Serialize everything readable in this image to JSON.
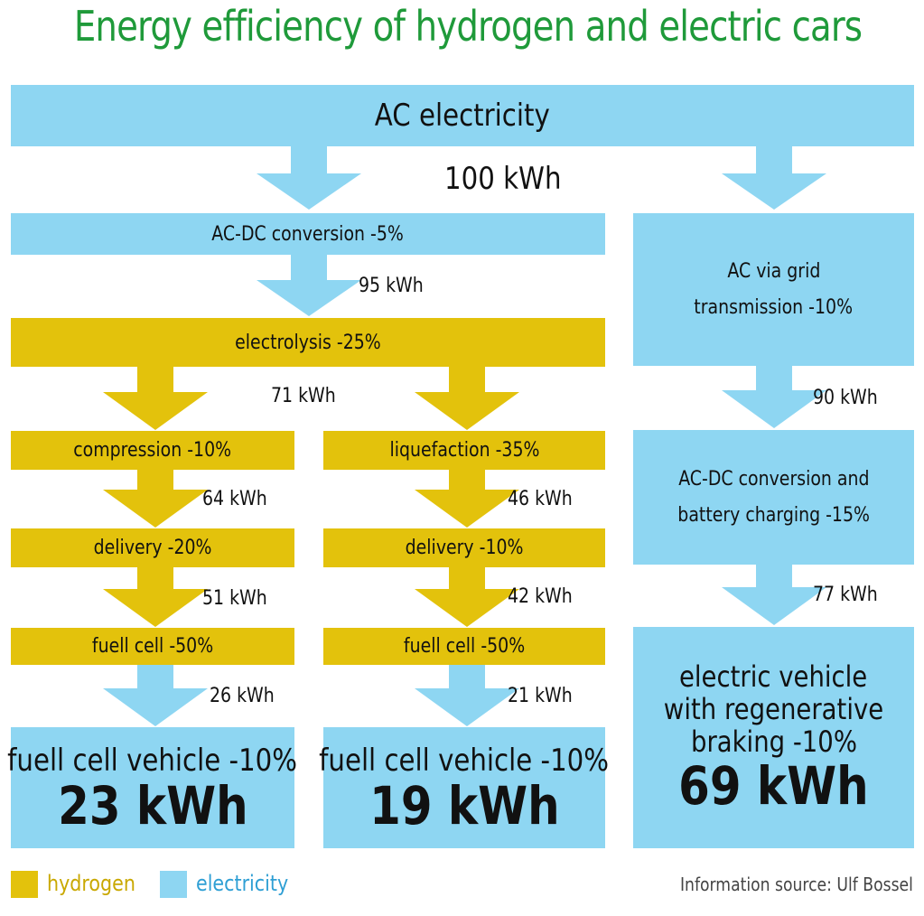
{
  "title": "Energy efficiency of hydrogen and electric cars",
  "colors": {
    "hydrogen": "#e3c20c",
    "electricity": "#8ed6f2",
    "title": "#1f9a3a"
  },
  "source": {
    "ac": "AC electricity",
    "kwh": "100 kWh"
  },
  "hydrogen_path": {
    "acdc": "AC-DC conversion -5%",
    "acdc_kwh": "95 kWh",
    "electrolysis": "electrolysis -25%",
    "electrolysis_kwh": "71 kWh",
    "compressed": {
      "compression": "compression -10%",
      "compression_kwh": "64 kWh",
      "delivery": "delivery -20%",
      "delivery_kwh": "51 kWh",
      "fuelcell": "fuell cell -50%",
      "fuelcell_kwh": "26 kWh",
      "vehicle": "fuell cell vehicle -10%",
      "result": "23 kWh"
    },
    "liquefied": {
      "liquefaction": "liquefaction -35%",
      "liquefaction_kwh": "46 kWh",
      "delivery": "delivery -10%",
      "delivery_kwh": "42 kWh",
      "fuelcell": "fuell cell -50%",
      "fuelcell_kwh": "21 kWh",
      "vehicle": "fuell cell vehicle -10%",
      "result": "19 kWh"
    }
  },
  "electric_path": {
    "grid_line1": "AC via grid",
    "grid_line2": "transmission -10%",
    "grid_kwh": "90 kWh",
    "charging_line1": "AC-DC conversion and",
    "charging_line2": "battery charging -15%",
    "charging_kwh": "77 kWh",
    "vehicle_line1": "electric vehicle",
    "vehicle_line2": "with regenerative",
    "vehicle_line3": "braking -10%",
    "result": "69 kWh"
  },
  "legend": {
    "hydrogen": "hydrogen",
    "electricity": "electricity"
  },
  "credit": "Information source: Ulf Bossel"
}
